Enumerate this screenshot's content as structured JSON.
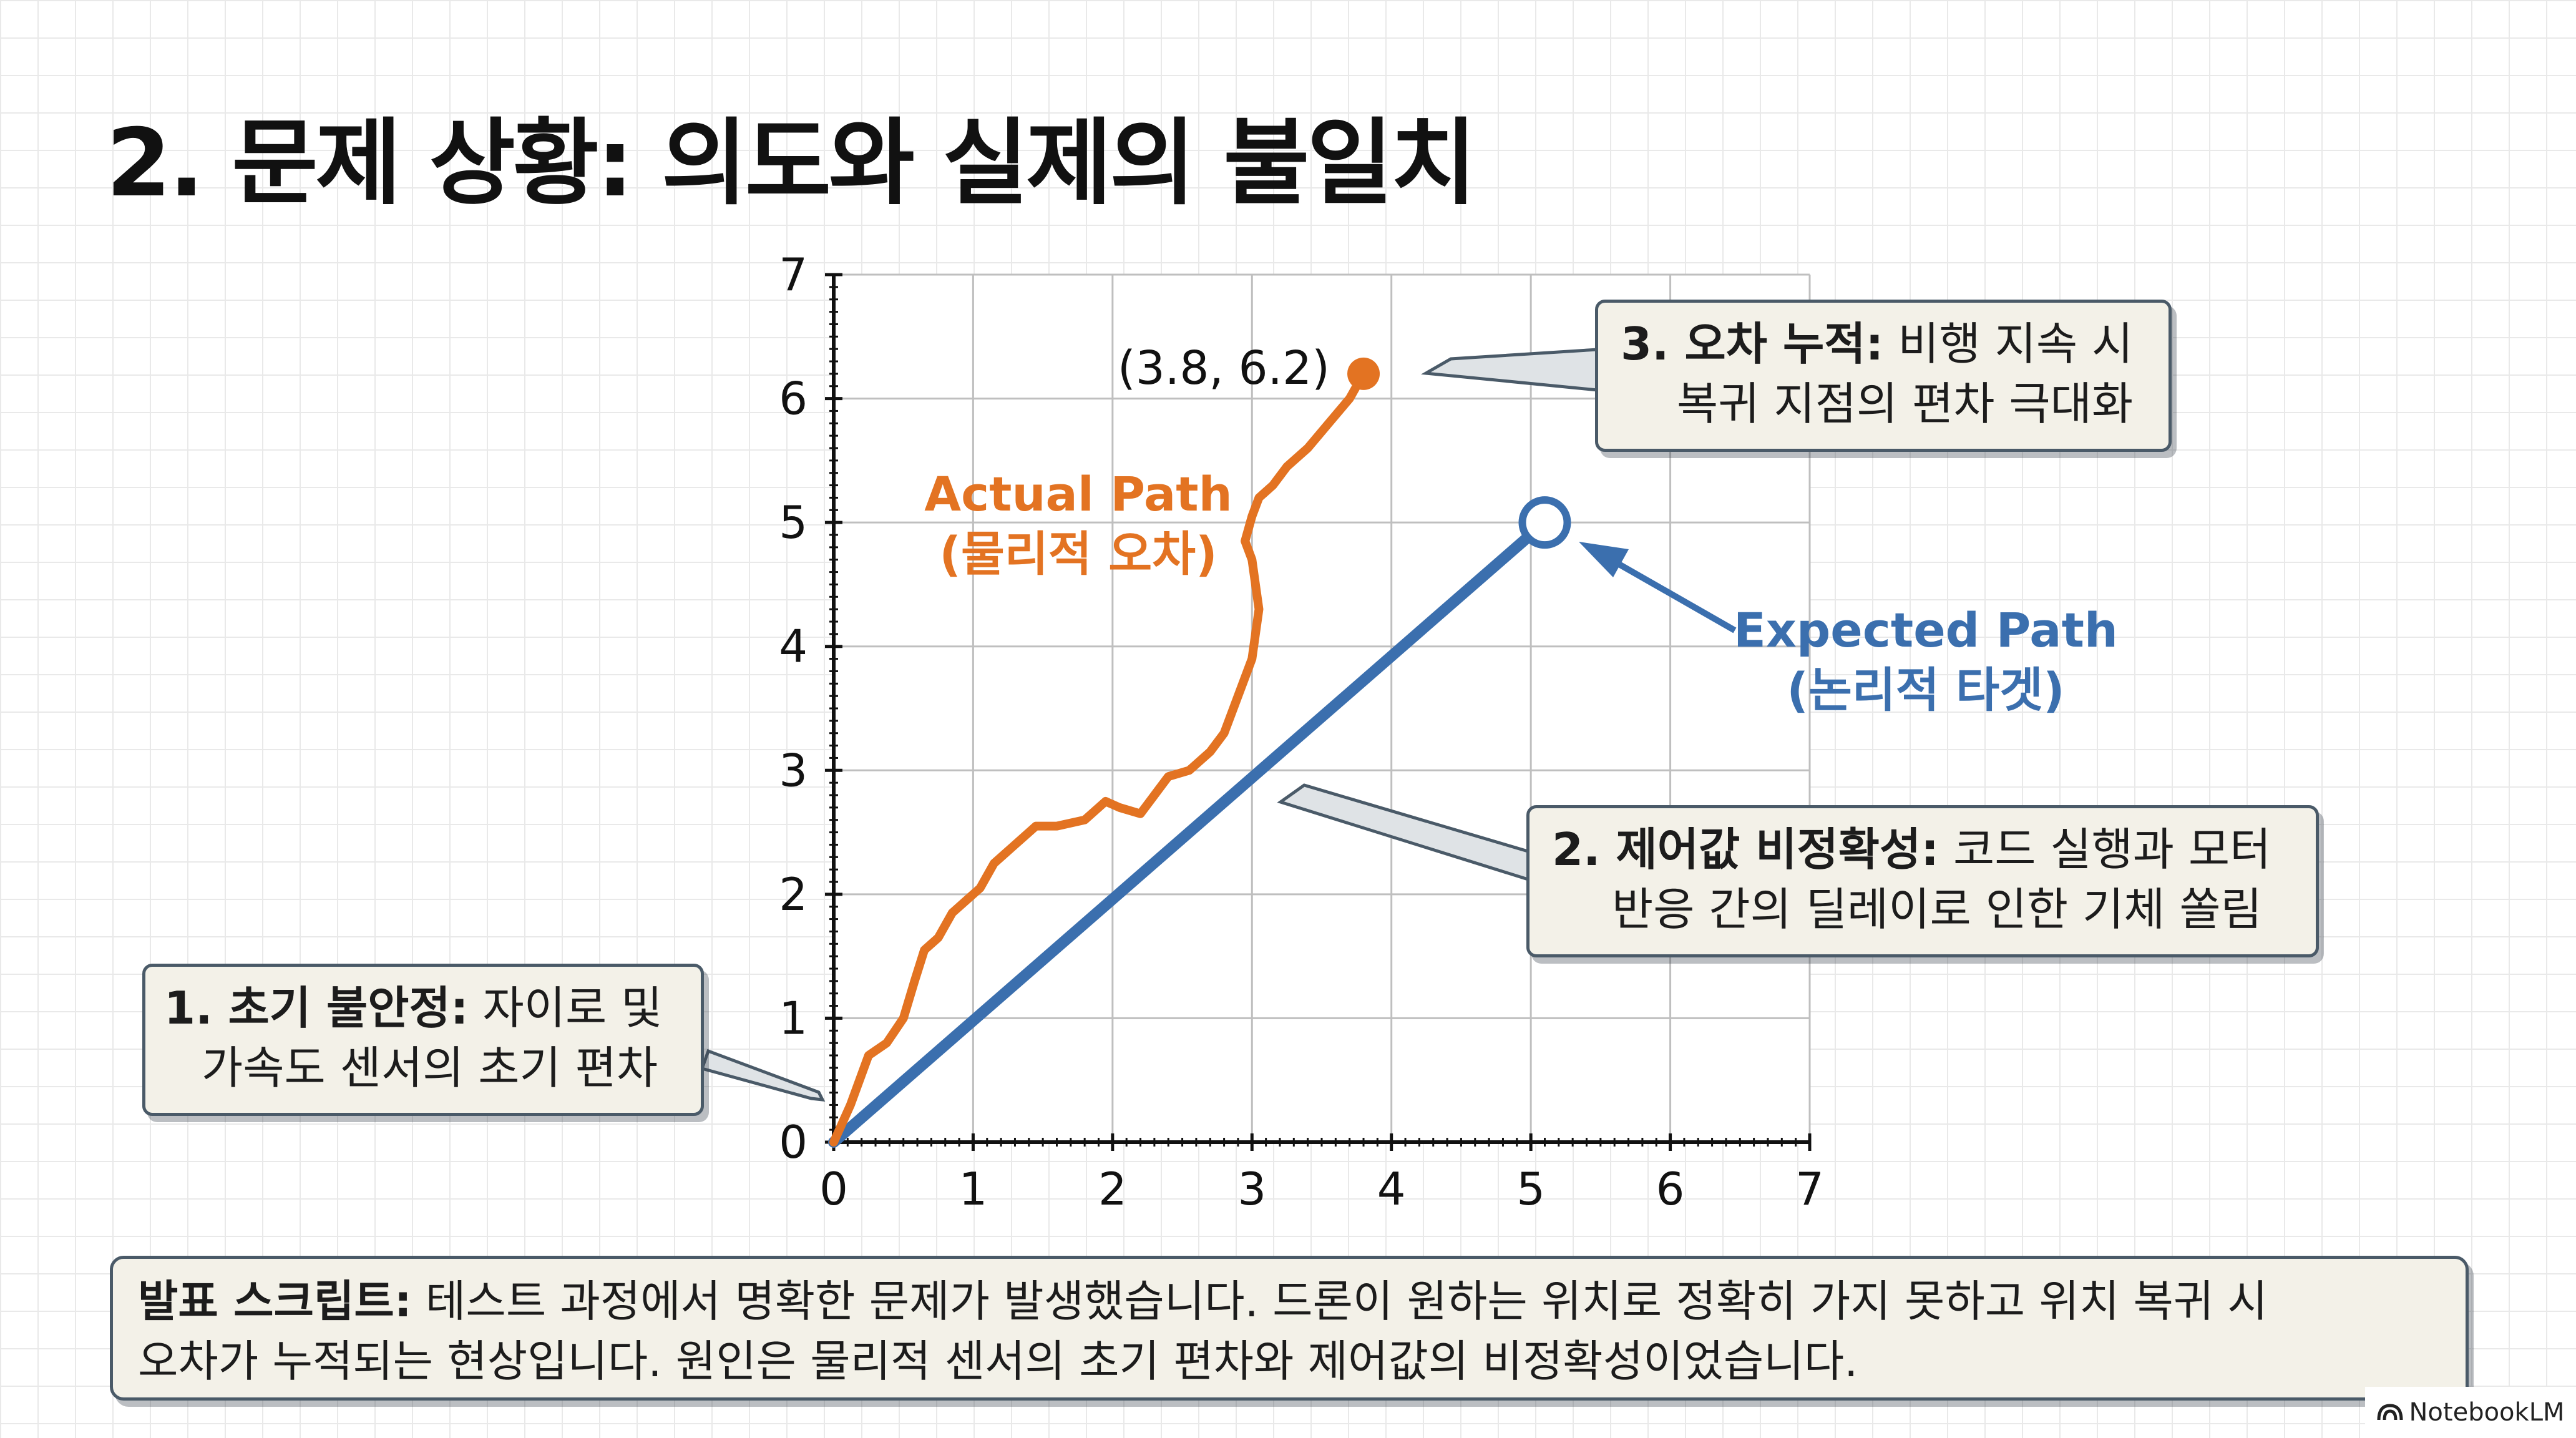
{
  "title": "2. 문제 상황: 의도와 실제의 불일치",
  "chart_data": {
    "type": "line",
    "xlim": [
      0,
      7
    ],
    "ylim": [
      0,
      7
    ],
    "x_ticks": [
      "0",
      "1",
      "2",
      "3",
      "4",
      "5",
      "6",
      "7"
    ],
    "y_ticks": [
      "0",
      "1",
      "2",
      "3",
      "4",
      "5",
      "6",
      "7"
    ],
    "grid": true,
    "series": [
      {
        "name": "Actual Path",
        "name_sub": "(물리적 오차)",
        "color": "#e37322",
        "x": [
          0,
          0.12,
          0.25,
          0.38,
          0.5,
          0.58,
          0.65,
          0.75,
          0.85,
          0.95,
          1.05,
          1.15,
          1.3,
          1.45,
          1.6,
          1.8,
          1.95,
          2.05,
          2.2,
          2.3,
          2.4,
          2.55,
          2.7,
          2.8,
          2.9,
          3.0,
          3.05,
          3.0,
          2.95,
          3.0,
          3.05,
          3.15,
          3.25,
          3.4,
          3.55,
          3.7,
          3.8
        ],
        "y": [
          0,
          0.3,
          0.7,
          0.8,
          1.0,
          1.3,
          1.55,
          1.65,
          1.85,
          1.95,
          2.05,
          2.25,
          2.4,
          2.55,
          2.55,
          2.6,
          2.75,
          2.7,
          2.65,
          2.8,
          2.95,
          3.0,
          3.15,
          3.3,
          3.6,
          3.9,
          4.3,
          4.7,
          4.85,
          5.05,
          5.2,
          5.3,
          5.45,
          5.6,
          5.8,
          6.0,
          6.2
        ]
      },
      {
        "name": "Expected Path",
        "name_sub": "(논리적 타겟)",
        "color": "#3b6fae",
        "x": [
          0,
          5.1
        ],
        "y": [
          0,
          5.0
        ]
      }
    ],
    "annotations": [
      {
        "text": "(3.8, 6.2)",
        "x": 3.8,
        "y": 6.2
      }
    ]
  },
  "callouts": [
    {
      "label": "1. 초기 불안정:",
      "line1": " 자이로 및",
      "line2": "가속도 센서의 초기 편차"
    },
    {
      "label": "2. 제어값 비정확성:",
      "line1": " 코드 실행과 모터",
      "line2": "반응 간의 딜레이로 인한 기체 쏠림"
    },
    {
      "label": "3. 오차 누적:",
      "line1": " 비행 지속 시",
      "line2": "복귀 지점의 편차 극대화"
    }
  ],
  "script": {
    "label": "발표 스크립트:",
    "line1": " 테스트 과정에서 명확한 문제가 발생했습니다. 드론이 원하는 위치로 정확히 가지 못하고 위치 복귀 시",
    "line2": "오차가 누적되는 현상입니다. 원인은 물리적 센서의 초기 편차와 제어값의 비정확성이었습니다."
  },
  "watermark": "NotebookLM"
}
